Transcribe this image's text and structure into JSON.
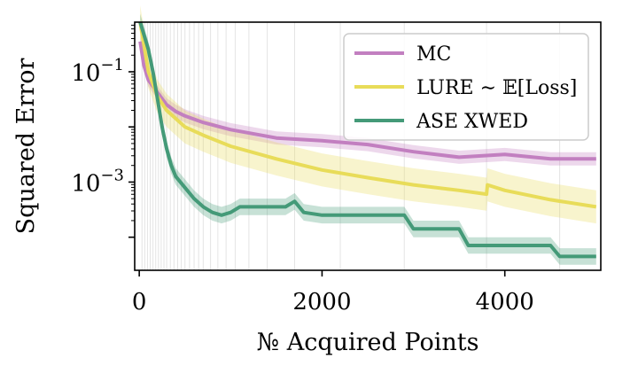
{
  "chart_data": {
    "type": "line",
    "xlabel": "№ Acquired Points",
    "ylabel": "Squared Error",
    "xlim": [
      -50,
      5050
    ],
    "ylim_log10": [
      -4.6,
      -0.1
    ],
    "yscale": "log",
    "xticks": [
      0,
      2000,
      4000
    ],
    "xtick_labels": [
      "0",
      "2000",
      "4000"
    ],
    "yticks_log10": [
      -1,
      -3
    ],
    "ytick_labels": [
      {
        "base": "10",
        "exp": "−1"
      },
      {
        "base": "10",
        "exp": "−3"
      }
    ],
    "grid": "faint vertical lines",
    "legend_position": "top-right",
    "series": [
      {
        "name": "MC",
        "color": "#c27fc0",
        "x": [
          10,
          50,
          100,
          200,
          300,
          400,
          500,
          700,
          1000,
          1500,
          2000,
          2500,
          3000,
          3500,
          4000,
          4500,
          5000
        ],
        "log10_y": [
          -0.45,
          -0.88,
          -1.15,
          -1.38,
          -1.6,
          -1.72,
          -1.8,
          -1.92,
          -2.05,
          -2.2,
          -2.25,
          -2.32,
          -2.45,
          -2.55,
          -2.5,
          -2.58,
          -2.58
        ],
        "band_log10": 0.12
      },
      {
        "name": "LURE ∼ 𝔼[Loss]",
        "color": "#e8dc59",
        "x": [
          10,
          50,
          100,
          200,
          300,
          400,
          500,
          700,
          1000,
          1500,
          2000,
          2500,
          3000,
          3500,
          3800,
          3810,
          4000,
          4500,
          5000
        ],
        "log10_y": [
          -0.1,
          -0.5,
          -1.0,
          -1.45,
          -1.7,
          -1.85,
          -2.0,
          -2.15,
          -2.35,
          -2.58,
          -2.78,
          -2.92,
          -3.05,
          -3.15,
          -3.22,
          -3.05,
          -3.15,
          -3.32,
          -3.45
        ],
        "band_log10": 0.3
      },
      {
        "name": "ASE XWED",
        "color": "#449a78",
        "x": [
          10,
          100,
          150,
          200,
          250,
          300,
          350,
          400,
          500,
          600,
          700,
          800,
          900,
          1000,
          1100,
          1200,
          1500,
          1600,
          1700,
          1800,
          2000,
          2500,
          2900,
          3000,
          3500,
          3600,
          3900,
          4200,
          4500,
          4600,
          5000
        ],
        "log10_y": [
          -0.1,
          -0.6,
          -1.0,
          -1.5,
          -2.0,
          -2.4,
          -2.7,
          -2.9,
          -3.1,
          -3.3,
          -3.45,
          -3.55,
          -3.6,
          -3.55,
          -3.45,
          -3.45,
          -3.45,
          -3.45,
          -3.35,
          -3.55,
          -3.6,
          -3.6,
          -3.6,
          -3.85,
          -3.85,
          -4.15,
          -4.15,
          -4.15,
          -4.15,
          -4.35,
          -4.35
        ],
        "band_log10": 0.15
      }
    ],
    "vlines_x": [
      30,
      60,
      90,
      120,
      150,
      180,
      210,
      240,
      270,
      300,
      340,
      380,
      420,
      460,
      500,
      550,
      600,
      650,
      700,
      780,
      860,
      950,
      1050,
      1200,
      1400,
      1700,
      2200,
      2900,
      3800,
      4600
    ]
  }
}
